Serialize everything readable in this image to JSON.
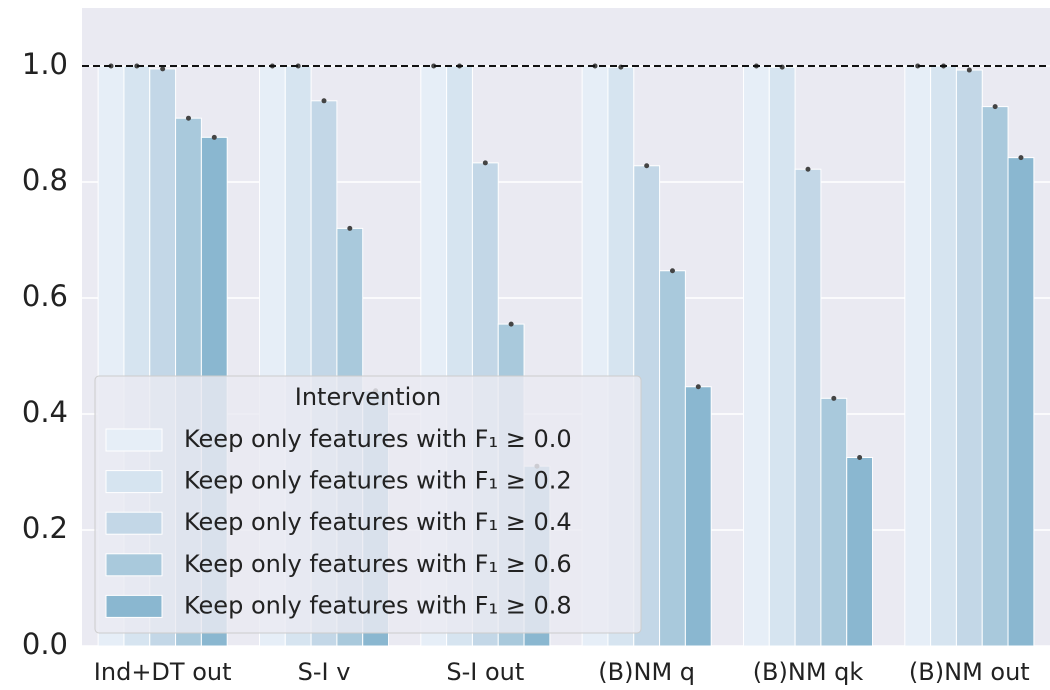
{
  "chart_data": {
    "type": "bar",
    "categories": [
      "Ind+DT out",
      "S-I v",
      "S-I out",
      "(B)NM q",
      "(B)NM qk",
      "(B)NM out"
    ],
    "series": [
      {
        "name": "Keep only features with F₁ ≥ 0.0",
        "color": "#e6eef7",
        "values": [
          1.0,
          1.0,
          1.0,
          1.0,
          1.0,
          1.0
        ]
      },
      {
        "name": "Keep only features with F₁ ≥ 0.2",
        "color": "#d6e4f0",
        "values": [
          1.0,
          1.0,
          1.0,
          0.998,
          0.998,
          1.0
        ]
      },
      {
        "name": "Keep only features with F₁ ≥ 0.4",
        "color": "#c3d7e7",
        "values": [
          0.995,
          0.94,
          0.833,
          0.828,
          0.822,
          0.993
        ]
      },
      {
        "name": "Keep only features with F₁ ≥ 0.6",
        "color": "#a9c9dc",
        "values": [
          0.91,
          0.72,
          0.555,
          0.647,
          0.427,
          0.93
        ]
      },
      {
        "name": "Keep only features with F₁ ≥ 0.8",
        "color": "#8ab7d0",
        "values": [
          0.877,
          0.44,
          0.31,
          0.447,
          0.325,
          0.842
        ]
      }
    ],
    "legend_title": "Intervention",
    "reference_line": 1.0,
    "ylim": [
      0,
      1.1
    ],
    "yticks": [
      {
        "value": 0,
        "label": "0.0"
      },
      0.2,
      0.4,
      0.6,
      0.8,
      {
        "value": 1,
        "label": "1.0"
      }
    ],
    "grid": true,
    "legend": "lower left"
  }
}
